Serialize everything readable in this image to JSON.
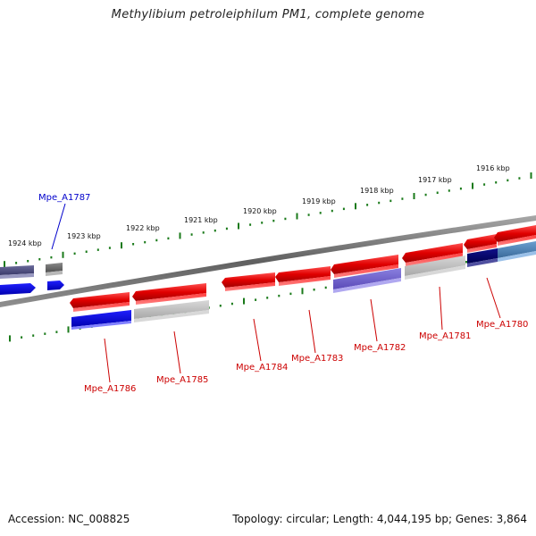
{
  "title": "Methylibium petroleiphilum PM1, complete genome",
  "footer": {
    "accession": "Accession: NC_008825",
    "summary": "Topology: circular; Length: 4,044,195 bp; Genes: 3,864"
  },
  "colors": {
    "backbone": "#7a7a7a",
    "ticks": "#1a7a1a",
    "red_gene": "#e01010",
    "blue_gene": "#1010e0",
    "purple_gene": "#6a5acd",
    "grey_gene": "#b0b0b0",
    "navy_gene": "#000080",
    "steel_gene": "#4682b4",
    "label_red": "#d00000",
    "label_blue": "#0000cc"
  },
  "scale": {
    "ticks": [
      {
        "label": "1924 kbp"
      },
      {
        "label": "1923 kbp"
      },
      {
        "label": "1922 kbp"
      },
      {
        "label": "1921 kbp"
      },
      {
        "label": "1920 kbp"
      },
      {
        "label": "1919 kbp"
      },
      {
        "label": "1918 kbp"
      },
      {
        "label": "1917 kbp"
      },
      {
        "label": "1916 kbp"
      }
    ]
  },
  "genes": [
    {
      "label": "Mpe_A1787",
      "color": "label_blue"
    },
    {
      "label": "Mpe_A1786",
      "color": "label_red"
    },
    {
      "label": "Mpe_A1785",
      "color": "label_red"
    },
    {
      "label": "Mpe_A1784",
      "color": "label_red"
    },
    {
      "label": "Mpe_A1783",
      "color": "label_red"
    },
    {
      "label": "Mpe_A1782",
      "color": "label_red"
    },
    {
      "label": "Mpe_A1781",
      "color": "label_red"
    },
    {
      "label": "Mpe_A1780",
      "color": "label_red"
    }
  ]
}
